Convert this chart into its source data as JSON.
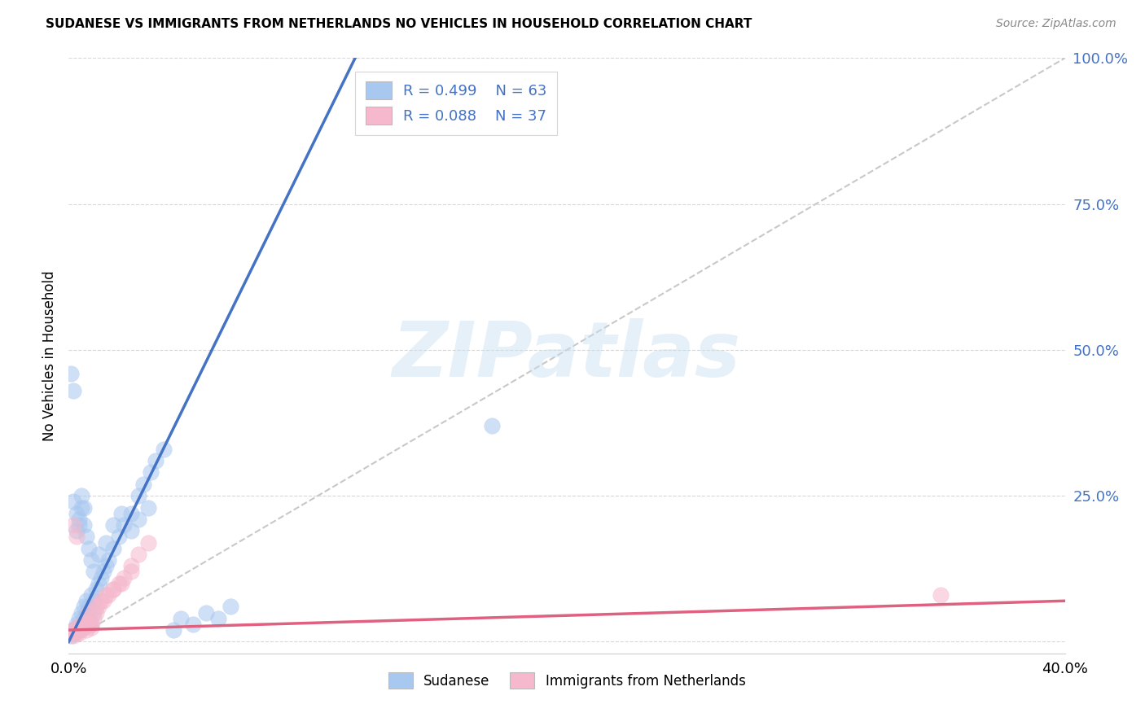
{
  "title": "SUDANESE VS IMMIGRANTS FROM NETHERLANDS NO VEHICLES IN HOUSEHOLD CORRELATION CHART",
  "source": "Source: ZipAtlas.com",
  "ylabel": "No Vehicles in Household",
  "ytick_vals": [
    0.0,
    0.25,
    0.5,
    0.75,
    1.0
  ],
  "ytick_labels": [
    "",
    "25.0%",
    "50.0%",
    "75.0%",
    "100.0%"
  ],
  "xtick_vals": [
    0.0,
    0.05,
    0.1,
    0.15,
    0.2,
    0.25,
    0.3,
    0.35,
    0.4
  ],
  "xlim": [
    0.0,
    0.4
  ],
  "ylim": [
    -0.02,
    1.0
  ],
  "blue_color": "#a8c8f0",
  "pink_color": "#f5b8cc",
  "blue_line_color": "#4472c4",
  "pink_line_color": "#e06080",
  "ref_line_color": "#c8c8c8",
  "watermark": "ZIPatlas",
  "legend1_R": "R = 0.499",
  "legend1_N": "N = 63",
  "legend2_R": "R = 0.088",
  "legend2_N": "N = 37",
  "legend_text_color": "#4472c4",
  "blue_scatter_x": [
    0.001,
    0.002,
    0.002,
    0.003,
    0.003,
    0.004,
    0.004,
    0.005,
    0.005,
    0.006,
    0.006,
    0.007,
    0.007,
    0.008,
    0.008,
    0.009,
    0.009,
    0.01,
    0.01,
    0.011,
    0.012,
    0.013,
    0.014,
    0.015,
    0.016,
    0.018,
    0.02,
    0.022,
    0.025,
    0.028,
    0.03,
    0.033,
    0.035,
    0.038,
    0.042,
    0.045,
    0.05,
    0.055,
    0.06,
    0.065,
    0.003,
    0.004,
    0.005,
    0.006,
    0.007,
    0.008,
    0.009,
    0.01,
    0.012,
    0.015,
    0.018,
    0.021,
    0.025,
    0.028,
    0.032,
    0.002,
    0.003,
    0.004,
    0.005,
    0.006,
    0.001,
    0.002,
    0.17
  ],
  "blue_scatter_y": [
    0.01,
    0.02,
    0.015,
    0.025,
    0.03,
    0.02,
    0.04,
    0.03,
    0.05,
    0.04,
    0.06,
    0.05,
    0.07,
    0.06,
    0.04,
    0.03,
    0.08,
    0.07,
    0.05,
    0.09,
    0.1,
    0.11,
    0.12,
    0.13,
    0.14,
    0.16,
    0.18,
    0.2,
    0.22,
    0.25,
    0.27,
    0.29,
    0.31,
    0.33,
    0.02,
    0.04,
    0.03,
    0.05,
    0.04,
    0.06,
    0.19,
    0.21,
    0.23,
    0.2,
    0.18,
    0.16,
    0.14,
    0.12,
    0.15,
    0.17,
    0.2,
    0.22,
    0.19,
    0.21,
    0.23,
    0.24,
    0.22,
    0.2,
    0.25,
    0.23,
    0.46,
    0.43,
    0.37
  ],
  "pink_scatter_x": [
    0.001,
    0.002,
    0.003,
    0.004,
    0.005,
    0.006,
    0.007,
    0.008,
    0.009,
    0.01,
    0.011,
    0.012,
    0.014,
    0.016,
    0.018,
    0.02,
    0.022,
    0.025,
    0.028,
    0.032,
    0.002,
    0.003,
    0.004,
    0.005,
    0.006,
    0.007,
    0.008,
    0.009,
    0.011,
    0.013,
    0.015,
    0.018,
    0.021,
    0.025,
    0.002,
    0.003,
    0.35
  ],
  "pink_scatter_y": [
    0.015,
    0.02,
    0.025,
    0.015,
    0.03,
    0.025,
    0.02,
    0.03,
    0.025,
    0.04,
    0.05,
    0.06,
    0.07,
    0.08,
    0.09,
    0.1,
    0.11,
    0.13,
    0.15,
    0.17,
    0.01,
    0.015,
    0.02,
    0.025,
    0.03,
    0.04,
    0.05,
    0.03,
    0.06,
    0.07,
    0.08,
    0.09,
    0.1,
    0.12,
    0.2,
    0.18,
    0.08
  ],
  "blue_line_x": [
    0.0,
    0.115
  ],
  "blue_line_y": [
    0.0,
    1.0
  ],
  "pink_line_x": [
    0.0,
    0.4
  ],
  "pink_line_y": [
    0.02,
    0.07
  ],
  "ref_line_x": [
    0.0,
    0.4
  ],
  "ref_line_y": [
    0.0,
    1.0
  ]
}
